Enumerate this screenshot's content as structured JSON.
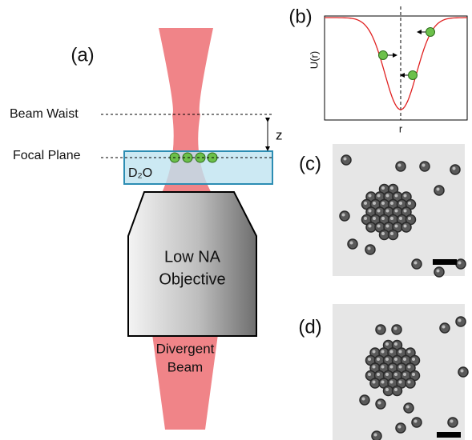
{
  "panel_a": {
    "label": "(a)",
    "beam_waist": "Beam Waist",
    "focal_plane": "Focal Plane",
    "z": "z",
    "medium": "D₂O",
    "objective": [
      "Low NA",
      "Objective"
    ],
    "beam": [
      "Divergent",
      "Beam"
    ]
  },
  "panel_b": {
    "label": "(b)",
    "y_label": "U(r)",
    "x_label": "r"
  },
  "panel_c": {
    "label": "(c)"
  },
  "panel_d": {
    "label": "(d)"
  }
}
